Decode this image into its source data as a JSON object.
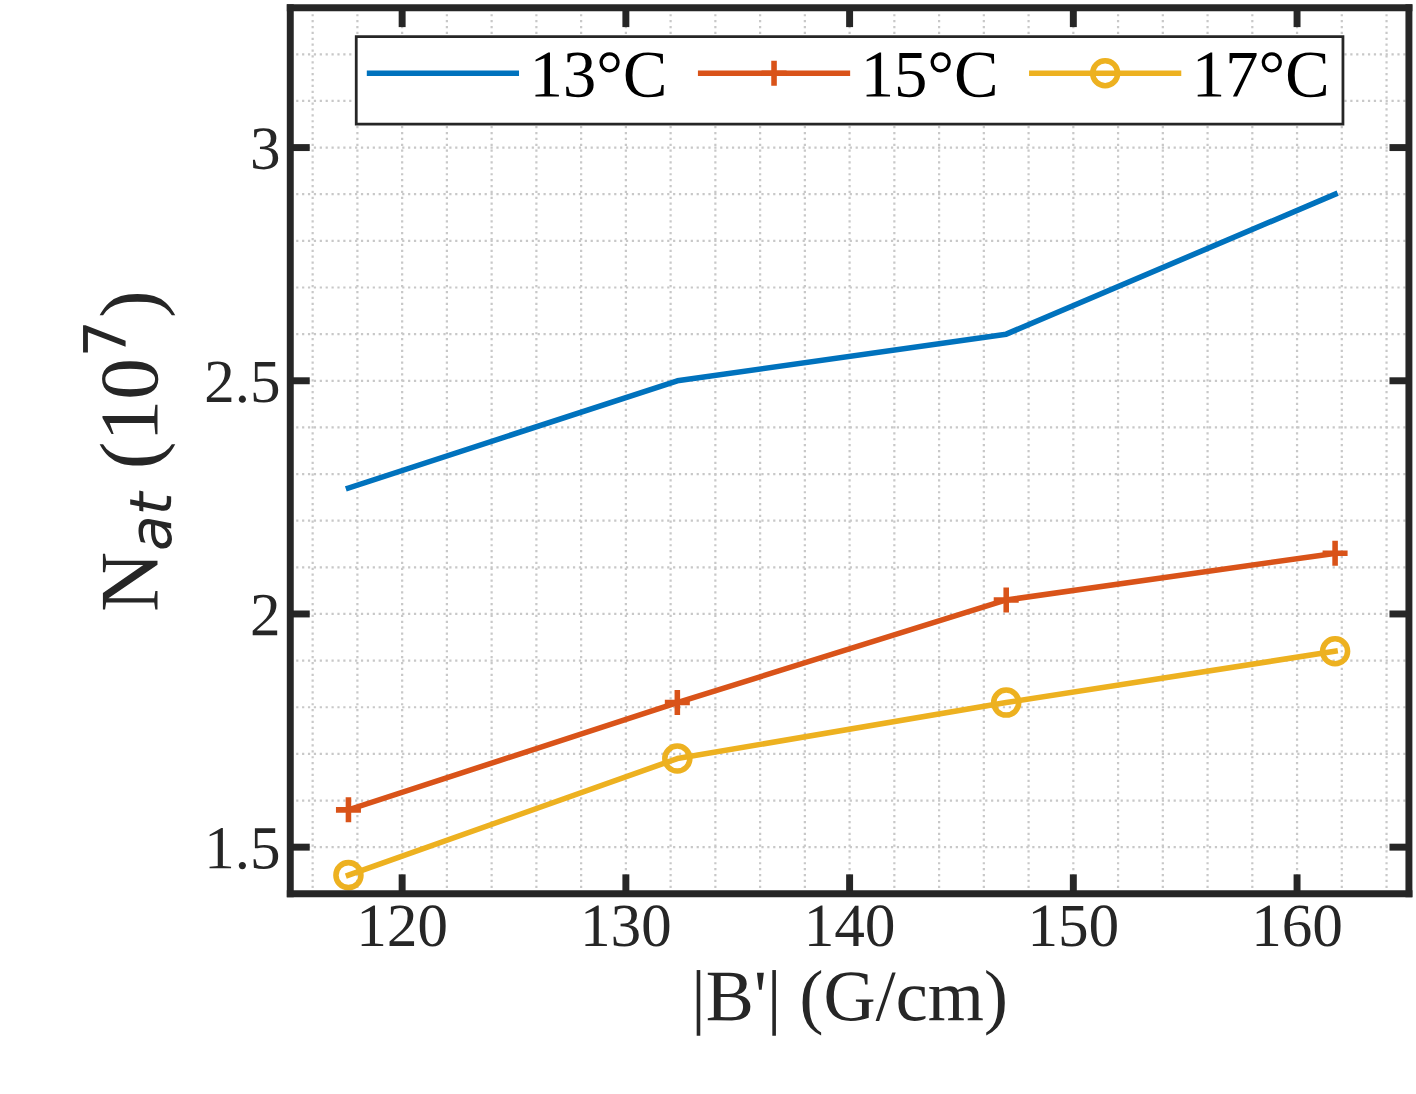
{
  "chart_data": {
    "type": "line",
    "xlabel": "|B'| (G/cm)",
    "ylabel": "N$_{at}$ (10$^{7}$)",
    "x": [
      117.6,
      132.3,
      147,
      161.7
    ],
    "series": [
      {
        "name": "13°C",
        "color": "#0072bd",
        "values": [
          2.27,
          2.5,
          2.6,
          2.9
        ],
        "marker": "none"
      },
      {
        "name": "15°C",
        "color": "#d95319",
        "values": [
          1.58,
          1.81,
          2.03,
          2.13
        ],
        "marker": "cross"
      },
      {
        "name": "17°C",
        "color": "#edb120",
        "values": [
          1.44,
          1.69,
          1.81,
          1.92
        ],
        "marker": "circle"
      }
    ],
    "xlim": [
      115,
      165
    ],
    "ylim": [
      1.4,
      3.3
    ],
    "xticks": [
      120,
      130,
      140,
      150,
      160
    ],
    "yticks": [
      1.5,
      2,
      2.5,
      3
    ],
    "grid": true,
    "legend": "top",
    "line_style": "solid"
  }
}
